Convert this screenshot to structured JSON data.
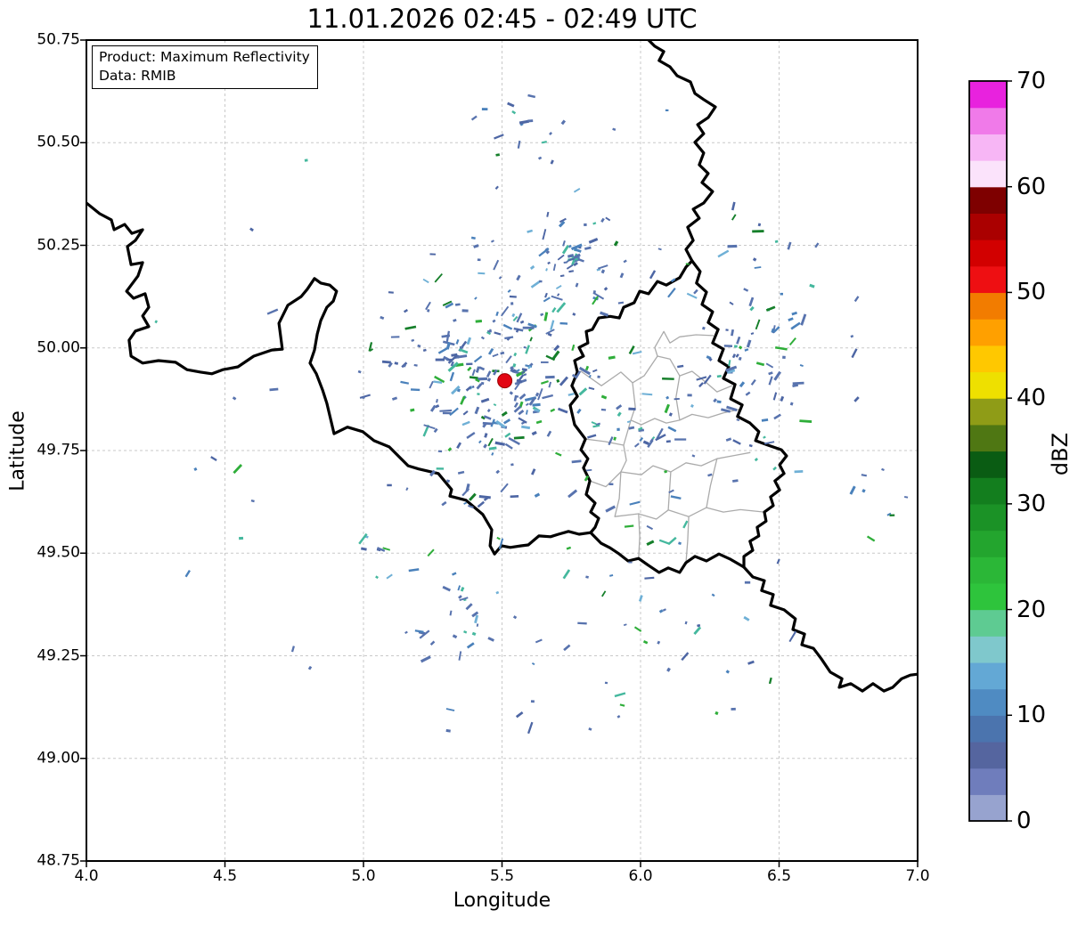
{
  "title": "11.01.2026 02:45 - 02:49 UTC",
  "annotation": {
    "product": "Product: Maximum Reflectivity",
    "data_source": "Data: RMIB"
  },
  "axes": {
    "xlabel": "Longitude",
    "ylabel": "Latitude",
    "xlim": [
      4.0,
      7.0
    ],
    "ylim": [
      48.75,
      50.75
    ],
    "xticks": [
      4.0,
      4.5,
      5.0,
      5.5,
      6.0,
      6.5,
      7.0
    ],
    "xtick_labels": [
      "4.0",
      "4.5",
      "5.0",
      "5.5",
      "6.0",
      "6.5",
      "7.0"
    ],
    "yticks": [
      48.75,
      49.0,
      49.25,
      49.5,
      49.75,
      50.0,
      50.25,
      50.5,
      50.75
    ],
    "ytick_labels": [
      "48.75",
      "49.00",
      "49.25",
      "49.50",
      "49.75",
      "50.00",
      "50.25",
      "50.50",
      "50.75"
    ],
    "grid": true,
    "grid_color": "#c9c9c9"
  },
  "colorbar": {
    "label": "dBZ",
    "min": 0,
    "max": 70,
    "step": 2.5,
    "ticks": [
      0,
      10,
      20,
      30,
      40,
      50,
      60,
      70
    ],
    "tick_labels": [
      "0",
      "10",
      "20",
      "30",
      "40",
      "50",
      "60",
      "70"
    ],
    "colors": [
      "#97a3cf",
      "#6f7dbc",
      "#55659f",
      "#4b74ae",
      "#4f8bc2",
      "#63a8d5",
      "#7fc8cc",
      "#5ecb92",
      "#2ec43c",
      "#2bb737",
      "#23a52e",
      "#1b9226",
      "#137e1e",
      "#0a5c13",
      "#4f7713",
      "#8f9c17",
      "#eee000",
      "#ffc800",
      "#ffa000",
      "#f27c00",
      "#ee0f12",
      "#d20000",
      "#aa0000",
      "#7e0000",
      "#fbe3fb",
      "#f7b6f5",
      "#f07ae9",
      "#e822de"
    ]
  },
  "radar_marker": {
    "lon": 5.51,
    "lat": 49.92,
    "color": "#e20613"
  },
  "map": {
    "country_border_color": "#000000",
    "district_border_color": "#ababab",
    "country_borders": [
      [
        [
          4.0,
          50.353
        ],
        [
          4.048,
          50.327
        ],
        [
          4.09,
          50.312
        ],
        [
          4.1,
          50.288
        ],
        [
          4.138,
          50.301
        ],
        [
          4.164,
          50.279
        ],
        [
          4.203,
          50.288
        ],
        [
          4.177,
          50.262
        ],
        [
          4.148,
          50.247
        ],
        [
          4.161,
          50.203
        ],
        [
          4.203,
          50.208
        ],
        [
          4.186,
          50.175
        ],
        [
          4.145,
          50.138
        ],
        [
          4.17,
          50.121
        ],
        [
          4.212,
          50.132
        ],
        [
          4.225,
          50.099
        ],
        [
          4.203,
          50.078
        ],
        [
          4.225,
          50.052
        ],
        [
          4.177,
          50.041
        ],
        [
          4.154,
          50.019
        ],
        [
          4.161,
          49.98
        ],
        [
          4.203,
          49.963
        ],
        [
          4.26,
          49.969
        ],
        [
          4.322,
          49.965
        ],
        [
          4.363,
          49.947
        ],
        [
          4.412,
          49.941
        ],
        [
          4.453,
          49.937
        ],
        [
          4.492,
          49.947
        ],
        [
          4.547,
          49.954
        ],
        [
          4.604,
          49.98
        ],
        [
          4.669,
          49.995
        ],
        [
          4.707,
          49.997
        ],
        [
          4.695,
          50.06
        ],
        [
          4.727,
          50.104
        ],
        [
          4.775,
          50.125
        ],
        [
          4.797,
          50.143
        ],
        [
          4.823,
          50.169
        ],
        [
          4.846,
          50.158
        ],
        [
          4.878,
          50.153
        ],
        [
          4.903,
          50.138
        ],
        [
          4.891,
          50.114
        ],
        [
          4.868,
          50.099
        ],
        [
          4.846,
          50.067
        ],
        [
          4.833,
          50.034
        ],
        [
          4.823,
          49.995
        ],
        [
          4.807,
          49.963
        ],
        [
          4.83,
          49.937
        ],
        [
          4.852,
          49.898
        ],
        [
          4.868,
          49.865
        ],
        [
          4.894,
          49.791
        ],
        [
          4.942,
          49.807
        ],
        [
          4.997,
          49.796
        ],
        [
          5.038,
          49.774
        ],
        [
          5.093,
          49.759
        ],
        [
          5.161,
          49.713
        ],
        [
          5.199,
          49.705
        ],
        [
          5.27,
          49.694
        ],
        [
          5.318,
          49.655
        ],
        [
          5.312,
          49.639
        ],
        [
          5.37,
          49.629
        ],
        [
          5.431,
          49.594
        ],
        [
          5.463,
          49.557
        ],
        [
          5.457,
          49.518
        ],
        [
          5.473,
          49.498
        ],
        [
          5.498,
          49.518
        ],
        [
          5.53,
          49.514
        ],
        [
          5.569,
          49.518
        ],
        [
          5.595,
          49.52
        ],
        [
          5.633,
          49.542
        ],
        [
          5.675,
          49.54
        ],
        [
          5.704,
          49.546
        ],
        [
          5.74,
          49.553
        ],
        [
          5.778,
          49.546
        ],
        [
          5.82,
          49.55
        ]
      ],
      [
        [
          5.82,
          49.55
        ],
        [
          5.836,
          49.563
        ],
        [
          5.849,
          49.585
        ],
        [
          5.82,
          49.6
        ],
        [
          5.836,
          49.622
        ],
        [
          5.804,
          49.643
        ],
        [
          5.817,
          49.676
        ],
        [
          5.794,
          49.708
        ],
        [
          5.81,
          49.73
        ],
        [
          5.785,
          49.752
        ],
        [
          5.801,
          49.778
        ],
        [
          5.762,
          49.813
        ],
        [
          5.746,
          49.86
        ],
        [
          5.772,
          49.882
        ],
        [
          5.752,
          49.908
        ],
        [
          5.772,
          49.941
        ],
        [
          5.762,
          49.969
        ],
        [
          5.794,
          49.98
        ],
        [
          5.778,
          50.001
        ],
        [
          5.81,
          50.012
        ],
        [
          5.804,
          50.04
        ],
        [
          5.826,
          50.045
        ],
        [
          5.849,
          50.073
        ],
        [
          5.89,
          50.077
        ],
        [
          5.923,
          50.073
        ],
        [
          5.939,
          50.099
        ],
        [
          5.977,
          50.11
        ],
        [
          5.997,
          50.138
        ],
        [
          6.029,
          50.132
        ],
        [
          6.061,
          50.162
        ],
        [
          6.093,
          50.153
        ],
        [
          6.141,
          50.171
        ],
        [
          6.164,
          50.197
        ],
        [
          6.186,
          50.212
        ]
      ],
      [
        [
          6.186,
          50.212
        ],
        [
          6.164,
          50.24
        ],
        [
          6.19,
          50.262
        ],
        [
          6.17,
          50.294
        ],
        [
          6.212,
          50.316
        ],
        [
          6.19,
          50.338
        ],
        [
          6.228,
          50.353
        ],
        [
          6.26,
          50.381
        ],
        [
          6.222,
          50.403
        ],
        [
          6.244,
          50.425
        ],
        [
          6.212,
          50.446
        ],
        [
          6.228,
          50.475
        ],
        [
          6.196,
          50.501
        ],
        [
          6.228,
          50.522
        ],
        [
          6.206,
          50.544
        ],
        [
          6.244,
          50.561
        ],
        [
          6.27,
          50.587
        ],
        [
          6.228,
          50.605
        ],
        [
          6.196,
          50.62
        ],
        [
          6.18,
          50.648
        ],
        [
          6.132,
          50.663
        ],
        [
          6.106,
          50.685
        ],
        [
          6.067,
          50.7
        ],
        [
          6.084,
          50.722
        ],
        [
          6.051,
          50.735
        ],
        [
          6.029,
          50.75
        ]
      ],
      [
        [
          6.186,
          50.212
        ],
        [
          6.215,
          50.186
        ],
        [
          6.202,
          50.158
        ],
        [
          6.238,
          50.136
        ],
        [
          6.222,
          50.106
        ],
        [
          6.26,
          50.088
        ],
        [
          6.244,
          50.062
        ],
        [
          6.28,
          50.045
        ],
        [
          6.26,
          50.012
        ],
        [
          6.299,
          49.997
        ],
        [
          6.283,
          49.969
        ],
        [
          6.318,
          49.954
        ],
        [
          6.299,
          49.926
        ],
        [
          6.341,
          49.911
        ],
        [
          6.325,
          49.876
        ],
        [
          6.367,
          49.861
        ],
        [
          6.35,
          49.833
        ],
        [
          6.395,
          49.817
        ],
        [
          6.427,
          49.796
        ],
        [
          6.415,
          49.774
        ],
        [
          6.46,
          49.763
        ],
        [
          6.508,
          49.752
        ],
        [
          6.527,
          49.737
        ],
        [
          6.502,
          49.715
        ],
        [
          6.518,
          49.694
        ],
        [
          6.485,
          49.676
        ],
        [
          6.502,
          49.654
        ],
        [
          6.469,
          49.637
        ],
        [
          6.479,
          49.616
        ],
        [
          6.447,
          49.6
        ],
        [
          6.453,
          49.578
        ],
        [
          6.421,
          49.563
        ],
        [
          6.427,
          49.542
        ],
        [
          6.395,
          49.529
        ],
        [
          6.405,
          49.507
        ],
        [
          6.373,
          49.492
        ],
        [
          6.373,
          49.466
        ]
      ],
      [
        [
          6.373,
          49.466
        ],
        [
          6.325,
          49.485
        ],
        [
          6.283,
          49.498
        ],
        [
          6.238,
          49.481
        ],
        [
          6.196,
          49.492
        ],
        [
          6.164,
          49.477
        ],
        [
          6.141,
          49.453
        ],
        [
          6.1,
          49.464
        ],
        [
          6.067,
          49.453
        ],
        [
          6.029,
          49.47
        ],
        [
          5.993,
          49.487
        ],
        [
          5.955,
          49.481
        ],
        [
          5.923,
          49.498
        ],
        [
          5.89,
          49.513
        ],
        [
          5.858,
          49.524
        ],
        [
          5.82,
          49.55
        ]
      ],
      [
        [
          6.373,
          49.466
        ],
        [
          6.405,
          49.442
        ],
        [
          6.447,
          49.433
        ],
        [
          6.437,
          49.409
        ],
        [
          6.479,
          49.399
        ],
        [
          6.469,
          49.373
        ],
        [
          6.518,
          49.362
        ],
        [
          6.559,
          49.34
        ],
        [
          6.55,
          49.314
        ],
        [
          6.592,
          49.303
        ],
        [
          6.582,
          49.277
        ],
        [
          6.624,
          49.268
        ],
        [
          6.653,
          49.242
        ],
        [
          6.685,
          49.21
        ],
        [
          6.727,
          49.194
        ],
        [
          6.717,
          49.173
        ],
        [
          6.759,
          49.182
        ],
        [
          6.801,
          49.164
        ],
        [
          6.839,
          49.182
        ],
        [
          6.878,
          49.164
        ],
        [
          6.91,
          49.173
        ],
        [
          6.942,
          49.194
        ],
        [
          6.974,
          49.203
        ],
        [
          7.0,
          49.205
        ]
      ]
    ],
    "district_borders": [
      [
        [
          5.772,
          49.937
        ],
        [
          5.785,
          49.943
        ],
        [
          5.859,
          49.908
        ],
        [
          5.929,
          49.941
        ],
        [
          5.971,
          49.915
        ],
        [
          6.013,
          49.932
        ],
        [
          6.061,
          49.98
        ],
        [
          6.106,
          49.973
        ],
        [
          6.141,
          49.932
        ],
        [
          6.186,
          49.943
        ],
        [
          6.238,
          49.915
        ],
        [
          6.276,
          49.893
        ],
        [
          6.33,
          49.908
        ]
      ],
      [
        [
          6.061,
          49.98
        ],
        [
          6.051,
          50.001
        ],
        [
          6.084,
          50.04
        ],
        [
          6.106,
          50.012
        ],
        [
          6.141,
          50.027
        ],
        [
          6.2,
          50.032
        ],
        [
          6.262,
          50.03
        ]
      ],
      [
        [
          5.971,
          49.915
        ],
        [
          5.981,
          49.856
        ],
        [
          5.965,
          49.824
        ],
        [
          6.003,
          49.813
        ],
        [
          6.051,
          49.828
        ],
        [
          6.093,
          49.817
        ],
        [
          6.141,
          49.824
        ],
        [
          6.186,
          49.838
        ],
        [
          6.244,
          49.83
        ],
        [
          6.3,
          49.842
        ],
        [
          6.357,
          49.85
        ]
      ],
      [
        [
          5.965,
          49.824
        ],
        [
          5.939,
          49.763
        ],
        [
          5.949,
          49.726
        ],
        [
          5.929,
          49.698
        ],
        [
          6.003,
          49.691
        ],
        [
          6.045,
          49.713
        ],
        [
          6.109,
          49.698
        ],
        [
          6.164,
          49.72
        ],
        [
          6.219,
          49.713
        ],
        [
          6.276,
          49.73
        ],
        [
          6.34,
          49.738
        ],
        [
          6.395,
          49.745
        ]
      ],
      [
        [
          5.929,
          49.698
        ],
        [
          5.923,
          49.633
        ],
        [
          5.907,
          49.589
        ],
        [
          5.993,
          49.596
        ],
        [
          6.057,
          49.583
        ],
        [
          6.1,
          49.605
        ],
        [
          6.174,
          49.589
        ],
        [
          6.238,
          49.611
        ],
        [
          6.299,
          49.6
        ],
        [
          6.36,
          49.606
        ],
        [
          6.447,
          49.6
        ]
      ],
      [
        [
          6.109,
          49.698
        ],
        [
          6.1,
          49.605
        ]
      ],
      [
        [
          6.276,
          49.73
        ],
        [
          6.252,
          49.664
        ],
        [
          6.238,
          49.611
        ]
      ],
      [
        [
          6.141,
          49.932
        ],
        [
          6.128,
          49.88
        ],
        [
          6.141,
          49.824
        ]
      ],
      [
        [
          5.993,
          49.596
        ],
        [
          5.997,
          49.54
        ],
        [
          5.993,
          49.487
        ]
      ],
      [
        [
          6.174,
          49.589
        ],
        [
          6.17,
          49.53
        ],
        [
          6.164,
          49.477
        ]
      ],
      [
        [
          5.801,
          49.778
        ],
        [
          5.871,
          49.772
        ],
        [
          5.939,
          49.763
        ]
      ],
      [
        [
          5.817,
          49.676
        ],
        [
          5.875,
          49.662
        ],
        [
          5.929,
          49.698
        ]
      ]
    ]
  },
  "echoes": {
    "seed": 7,
    "palette": [
      {
        "color": "#5873ae",
        "w": 0.44
      },
      {
        "color": "#4d66a4",
        "w": 0.18
      },
      {
        "color": "#4a81bb",
        "w": 0.12
      },
      {
        "color": "#6fb0d6",
        "w": 0.06
      },
      {
        "color": "#45b89e",
        "w": 0.08
      },
      {
        "color": "#2fae3a",
        "w": 0.07
      },
      {
        "color": "#157f2a",
        "w": 0.05
      }
    ],
    "clusters": [
      {
        "name": "radar-clutter-inner",
        "lon": 5.51,
        "lat": 49.92,
        "r0": 14,
        "r1": 78,
        "n": 160
      },
      {
        "name": "radar-clutter-outer",
        "lon": 5.51,
        "lat": 49.92,
        "r0": 78,
        "r1": 165,
        "n": 110
      },
      {
        "name": "northeast-cluster",
        "lon": 5.76,
        "lat": 50.22,
        "r0": 0,
        "r1": 58,
        "n": 55
      },
      {
        "name": "east-scatter",
        "lon": 6.36,
        "lat": 50.0,
        "r0": 0,
        "r1": 150,
        "n": 85
      },
      {
        "name": "luxembourg-scatter",
        "lon": 6.05,
        "lat": 49.78,
        "r0": 0,
        "r1": 120,
        "n": 40
      },
      {
        "name": "south-scatter",
        "lon": 5.38,
        "lat": 49.38,
        "r0": 0,
        "r1": 170,
        "n": 55
      },
      {
        "name": "southeast-scatter",
        "lon": 6.15,
        "lat": 49.35,
        "r0": 0,
        "r1": 140,
        "n": 30
      },
      {
        "name": "north-sparse",
        "lon": 5.58,
        "lat": 50.55,
        "r0": 0,
        "r1": 130,
        "n": 16
      },
      {
        "name": "far-east-sparse",
        "lon": 6.8,
        "lat": 49.62,
        "r0": 0,
        "r1": 130,
        "n": 14
      },
      {
        "name": "wide-sparse",
        "lon": 5.5,
        "lat": 49.9,
        "r0": 230,
        "r1": 430,
        "n": 36
      }
    ]
  }
}
